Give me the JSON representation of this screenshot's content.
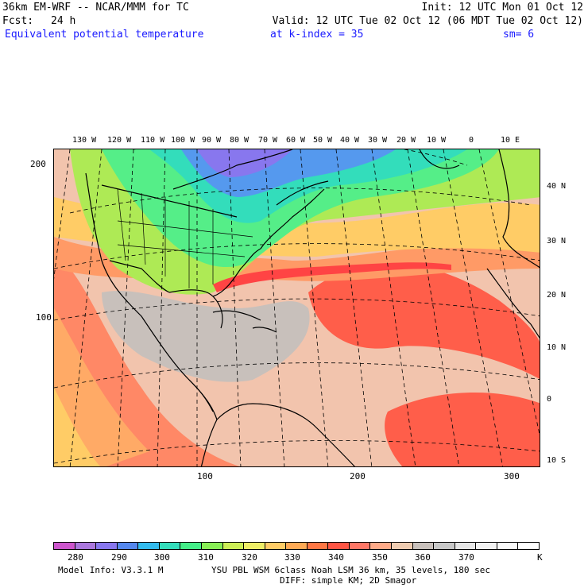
{
  "header": {
    "model_title": "36km EM-WRF -- NCAR/MMM for TC",
    "init": "Init: 12 UTC Mon 01 Oct 12",
    "fcst_label": "Fcst:",
    "fcst_value": "24 h",
    "valid": "Valid: 12 UTC Tue 02 Oct 12 (06 MDT Tue 02 Oct 12)",
    "field": "Equivalent potential temperature",
    "level": "at k-index =  35",
    "smooth": "sm= 6"
  },
  "longitude_labels": [
    "130 W",
    "120 W",
    "110 W",
    "100 W",
    "90 W",
    "80 W",
    "70 W",
    "60 W",
    "50 W",
    "40 W",
    "30 W",
    "20 W",
    "10 W",
    "0",
    "10 E"
  ],
  "latitude_labels": [
    "40 N",
    "30 N",
    "20 N",
    "10 N",
    "0",
    "10 S"
  ],
  "grid_y_labels": [
    "200",
    "100"
  ],
  "grid_x_labels": [
    "100",
    "200",
    "300"
  ],
  "colorbar": {
    "colors": [
      "#cc55cc",
      "#aa77dd",
      "#8877ee",
      "#5588ee",
      "#33bbee",
      "#33ddbb",
      "#44ee88",
      "#88ee55",
      "#ccee55",
      "#eeee66",
      "#ffcc66",
      "#ffaa55",
      "#ff7744",
      "#ff5544",
      "#ff7766",
      "#ffaa88",
      "#eecbb0",
      "#c8c0bb",
      "#c8c8c8",
      "#e6e6e6",
      "#f2f2f2",
      "#fafafa",
      "#ffffff"
    ],
    "labels": [
      "280",
      "290",
      "300",
      "310",
      "320",
      "330",
      "340",
      "350",
      "360",
      "370"
    ],
    "unit": "K"
  },
  "footer": {
    "model_info": "Model Info: V3.3.1 M",
    "physics": "YSU PBL  WSM 6class  Noah LSM  36 km,   35 levels,  180 sec",
    "diffusion": "DIFF: simple KM; 2D Smagor"
  }
}
